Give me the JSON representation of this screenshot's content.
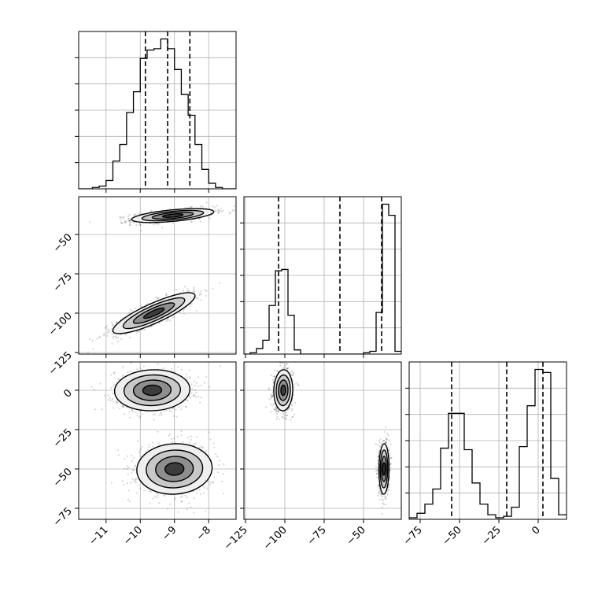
{
  "chart_data": {
    "type": "corner",
    "grid": true,
    "colors": {
      "line": "#000000",
      "grid": "#b0b0b0",
      "scatter": "#000000"
    },
    "histograms": [
      {
        "param": 0,
        "bin_edges": [
          -11.8,
          -11.6,
          -11.4,
          -11.2,
          -11.0,
          -10.8,
          -10.6,
          -10.4,
          -10.2,
          -10.0,
          -9.8,
          -9.6,
          -9.4,
          -9.2,
          -9.0,
          -8.8,
          -8.6,
          -8.4,
          -8.2,
          -8.0,
          -7.8,
          -7.6,
          -7.4,
          -7.2
        ],
        "counts": [
          0,
          0,
          1,
          2,
          6,
          20,
          32,
          55,
          70,
          94,
          100,
          101,
          108,
          101,
          86,
          68,
          53,
          32,
          14,
          4,
          1,
          0,
          0
        ],
        "quantiles": [
          -9.85,
          -9.2,
          -8.55
        ]
      },
      {
        "param": 1,
        "bin_edges": [
          -126,
          -122,
          -118,
          -114,
          -110,
          -106,
          -102,
          -98,
          -94,
          -90,
          -86,
          -82,
          -78,
          -74,
          -70,
          -66,
          -62,
          -58,
          -54,
          -50,
          -46,
          -42,
          -38,
          -34,
          -30,
          -26
        ],
        "counts": [
          0,
          1,
          4,
          10,
          35,
          60,
          61,
          28,
          3,
          0,
          0,
          0,
          0,
          0,
          0,
          0,
          0,
          0,
          0,
          1,
          2,
          30,
          108,
          100,
          2
        ],
        "quantiles": [
          -104,
          -65,
          -38.5
        ]
      },
      {
        "param": 2,
        "bin_edges": [
          -82,
          -77,
          -72,
          -67,
          -62,
          -57,
          -52,
          -47,
          -42,
          -37,
          -32,
          -27,
          -22,
          -17,
          -12,
          -7,
          -2,
          3,
          8,
          13,
          18
        ],
        "counts": [
          1,
          4,
          10,
          20,
          47,
          70,
          70,
          46,
          24,
          10,
          3,
          1,
          2,
          8,
          48,
          75,
          99,
          97,
          27,
          3
        ],
        "quantiles": [
          -55,
          -20,
          3
        ]
      }
    ],
    "pairs": [
      {
        "x_param": 0,
        "y_param": 1,
        "modes": [
          {
            "cx": -9.05,
            "cy": -38,
            "sx": 0.6,
            "sy": 2.2,
            "rho": 0.55,
            "n": 900
          },
          {
            "cx": -9.6,
            "cy": -100,
            "sx": 0.6,
            "sy": 6.5,
            "rho": 0.85,
            "n": 900
          }
        ]
      },
      {
        "x_param": 0,
        "y_param": 2,
        "modes": [
          {
            "cx": -9.65,
            "cy": 0,
            "sx": 0.55,
            "sy": 6.5,
            "rho": 0.05,
            "n": 900
          },
          {
            "cx": -9.0,
            "cy": -50,
            "sx": 0.55,
            "sy": 8.0,
            "rho": 0.05,
            "n": 900
          }
        ]
      },
      {
        "x_param": 1,
        "y_param": 2,
        "modes": [
          {
            "cx": -101,
            "cy": 0,
            "sx": 3.0,
            "sy": 6.5,
            "rho": 0.05,
            "n": 900
          },
          {
            "cx": -37,
            "cy": -50,
            "sx": 1.6,
            "sy": 8.0,
            "rho": 0.05,
            "n": 900
          }
        ]
      }
    ],
    "params": [
      {
        "range": [
          -11.8,
          -7.2
        ],
        "ticks": [
          -11,
          -10,
          -9,
          -8
        ],
        "tick_labels": [
          "−11",
          "−10",
          "−9",
          "−8"
        ]
      },
      {
        "range": [
          -126,
          -26
        ],
        "ticks": [
          -125,
          -100,
          -75,
          -50
        ],
        "tick_labels": [
          "−125",
          "−100",
          "−75",
          "−50"
        ]
      },
      {
        "range": [
          -82,
          18
        ],
        "ticks": [
          -75,
          -50,
          -25,
          0
        ],
        "tick_labels": [
          "−75",
          "−50",
          "−25",
          "0"
        ]
      }
    ]
  }
}
